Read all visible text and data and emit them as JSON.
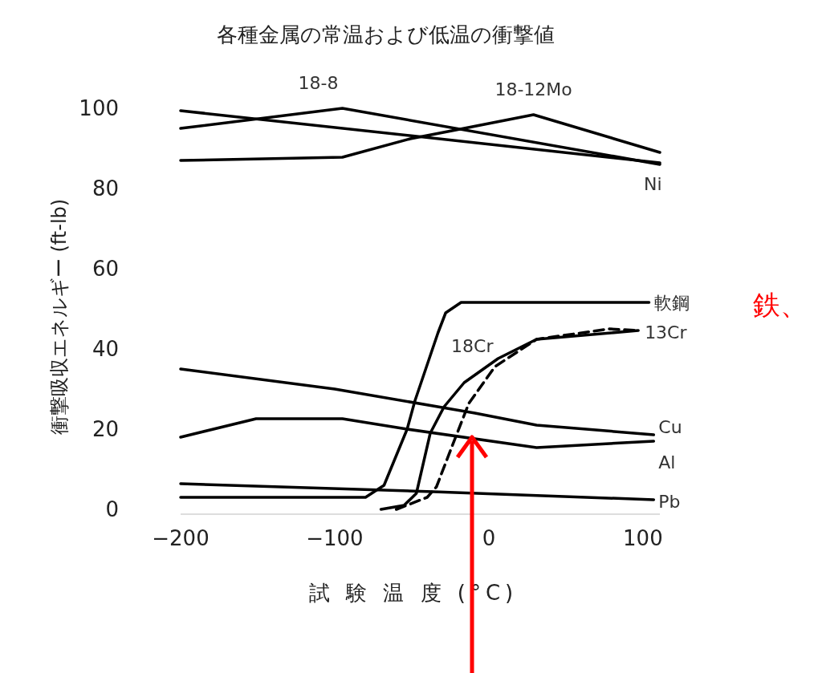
{
  "chart_data": {
    "type": "line",
    "title": "各種金属の常温および低温の衝撃値",
    "xlabel": "試 験 温 度 (°C)",
    "ylabel": "衝撃吸収エネルギー (ft-lb)",
    "xlim": [
      -200,
      111
    ],
    "ylim": [
      0,
      100
    ],
    "xticks": [
      {
        "value": -200,
        "label": "−200"
      },
      {
        "value": -100,
        "label": "−100"
      },
      0,
      100
    ],
    "yticks": [
      0,
      20,
      40,
      60,
      80,
      100
    ],
    "grid": false,
    "series": [
      {
        "name": "18-8",
        "color": "#000000",
        "x": [
          -200,
          -95,
          111
        ],
        "values": [
          95,
          100,
          86
        ]
      },
      {
        "name": "18-12Mo",
        "color": "#000000",
        "x": [
          -200,
          -95,
          -51,
          -24,
          29,
          111
        ],
        "values": [
          87,
          87.8,
          92.4,
          94.4,
          98.4,
          89
        ]
      },
      {
        "name": "Ni",
        "color": "#000000",
        "x": [
          -200,
          111
        ],
        "values": [
          99.4,
          86.4
        ]
      },
      {
        "name": "軟鋼",
        "color": "#000000",
        "x": [
          -200,
          -80,
          -68,
          -53,
          -48,
          -33,
          -28,
          -18,
          104
        ],
        "values": [
          3,
          3,
          6,
          20,
          27,
          44,
          49,
          51.6,
          51.6
        ]
      },
      {
        "name": "18Cr",
        "color": "#000000",
        "x": [
          -70,
          -55,
          -47,
          -38,
          -29,
          -16,
          6,
          31,
          97
        ],
        "values": [
          0,
          1,
          4,
          19,
          25.6,
          31.6,
          37.6,
          42.4,
          44.6
        ]
      },
      {
        "name": "13Cr",
        "color": "#000000",
        "line_style": "dashed",
        "x": [
          -60,
          -40,
          -34,
          -24,
          -13,
          4,
          31,
          78,
          97
        ],
        "values": [
          0,
          3,
          5.6,
          15.6,
          26.4,
          35.6,
          42.4,
          45,
          44.6
        ]
      },
      {
        "name": "Cu",
        "color": "#000000",
        "x": [
          -200,
          -100,
          -9,
          31,
          107
        ],
        "values": [
          35,
          30,
          24,
          21,
          18.6
        ]
      },
      {
        "name": "Al",
        "color": "#000000",
        "x": [
          -200,
          -151,
          -95,
          -53,
          31,
          107
        ],
        "values": [
          18,
          22.6,
          22.6,
          20,
          15.4,
          17
        ]
      },
      {
        "name": "Pb",
        "color": "#000000",
        "x": [
          -200,
          -36,
          107
        ],
        "values": [
          6.4,
          4.4,
          2.4
        ]
      }
    ],
    "annotations": [
      "鉄、"
    ]
  }
}
